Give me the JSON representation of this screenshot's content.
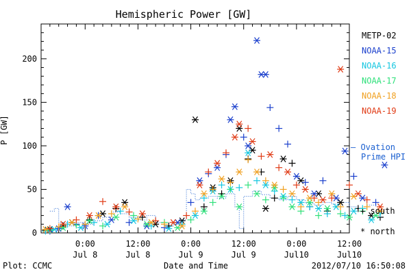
{
  "chart_data": {
    "type": "scatter",
    "title": "Hemispheric Power [GW]",
    "ylabel": "P [GW]",
    "xlabel": "Date and Time",
    "ylim": [
      0,
      240
    ],
    "xlim_hours": [
      -10,
      60
    ],
    "yticks": [
      0,
      50,
      100,
      150,
      200
    ],
    "xticks": [
      {
        "x": 0,
        "time": "0:00",
        "date": "Jul 8"
      },
      {
        "x": 12,
        "time": "12:00",
        "date": "Jul 8"
      },
      {
        "x": 24,
        "time": "0:00",
        "date": "Jul 9"
      },
      {
        "x": 36,
        "time": "12:00",
        "date": "Jul 9"
      },
      {
        "x": 48,
        "time": "0:00",
        "date": "Jul10"
      },
      {
        "x": 60,
        "time": "12:00",
        "date": "Jul10"
      }
    ],
    "footer_left": "Plot: CCMC",
    "footer_right": "2012/07/10 16:50:08",
    "ovation": {
      "label_line1": "— Ovation",
      "label_line2": "Prime HPI",
      "color": "#1a5fd0",
      "points": [
        [
          -8,
          25
        ],
        [
          -7,
          28
        ],
        [
          -6,
          12
        ],
        [
          -4,
          8
        ],
        [
          -2,
          12
        ],
        [
          0,
          10
        ],
        [
          2,
          14
        ],
        [
          4,
          18
        ],
        [
          6,
          24
        ],
        [
          8,
          22
        ],
        [
          10,
          18
        ],
        [
          12,
          15
        ],
        [
          14,
          20
        ],
        [
          16,
          12
        ],
        [
          18,
          8
        ],
        [
          20,
          10
        ],
        [
          22,
          15
        ],
        [
          23,
          50
        ],
        [
          24,
          45
        ],
        [
          25,
          38
        ],
        [
          26,
          40
        ],
        [
          28,
          42
        ],
        [
          30,
          40
        ],
        [
          32,
          45
        ],
        [
          34,
          30
        ],
        [
          35,
          5
        ],
        [
          36,
          42
        ],
        [
          38,
          48
        ],
        [
          40,
          44
        ],
        [
          42,
          40
        ],
        [
          44,
          38
        ],
        [
          46,
          42
        ],
        [
          48,
          38
        ],
        [
          50,
          34
        ],
        [
          52,
          32
        ],
        [
          54,
          35
        ],
        [
          56,
          33
        ],
        [
          58,
          35
        ],
        [
          60,
          30
        ],
        [
          62,
          28
        ],
        [
          64,
          32
        ],
        [
          66,
          30
        ]
      ]
    },
    "series": [
      {
        "name": "METP-02",
        "color": "#000000",
        "points": [
          [
            -9,
            3,
            "+"
          ],
          [
            -8,
            4,
            "*"
          ],
          [
            -5,
            8,
            "+"
          ],
          [
            -3,
            12,
            "*"
          ],
          [
            1,
            15,
            "+"
          ],
          [
            4,
            22,
            "*"
          ],
          [
            7,
            28,
            "+"
          ],
          [
            9,
            35,
            "*"
          ],
          [
            13,
            18,
            "+"
          ],
          [
            16,
            10,
            "*"
          ],
          [
            19,
            8,
            "+"
          ],
          [
            22,
            14,
            "*"
          ],
          [
            25,
            130,
            "*"
          ],
          [
            27,
            30,
            "+"
          ],
          [
            29,
            52,
            "*"
          ],
          [
            31,
            45,
            "+"
          ],
          [
            33,
            60,
            "*"
          ],
          [
            35,
            120,
            "*"
          ],
          [
            37,
            85,
            "+"
          ],
          [
            38,
            95,
            "*"
          ],
          [
            40,
            70,
            "+"
          ],
          [
            41,
            28,
            "*"
          ],
          [
            43,
            40,
            "+"
          ],
          [
            45,
            85,
            "*"
          ],
          [
            47,
            80,
            "+"
          ],
          [
            49,
            60,
            "*"
          ],
          [
            51,
            30,
            "+"
          ],
          [
            53,
            45,
            "*"
          ],
          [
            55,
            25,
            "+"
          ],
          [
            58,
            35,
            "*"
          ],
          [
            62,
            28,
            "+"
          ],
          [
            65,
            20,
            "*"
          ],
          [
            67,
            18,
            "+"
          ]
        ]
      },
      {
        "name": "NOAA-15",
        "color": "#1a3fcc",
        "points": [
          [
            -8,
            2,
            "+"
          ],
          [
            -6,
            5,
            "*"
          ],
          [
            -4,
            30,
            "*"
          ],
          [
            -2,
            10,
            "+"
          ],
          [
            0,
            8,
            "*"
          ],
          [
            3,
            20,
            "+"
          ],
          [
            6,
            15,
            "*"
          ],
          [
            10,
            12,
            "+"
          ],
          [
            14,
            8,
            "*"
          ],
          [
            18,
            6,
            "+"
          ],
          [
            21,
            12,
            "*"
          ],
          [
            24,
            35,
            "+"
          ],
          [
            26,
            60,
            "*"
          ],
          [
            28,
            68,
            "+"
          ],
          [
            30,
            75,
            "*"
          ],
          [
            32,
            90,
            "+"
          ],
          [
            33,
            130,
            "*"
          ],
          [
            34,
            145,
            "*"
          ],
          [
            36,
            110,
            "+"
          ],
          [
            37,
            100,
            "*"
          ],
          [
            39,
            221,
            "*"
          ],
          [
            40,
            182,
            "*"
          ],
          [
            41,
            182,
            "*"
          ],
          [
            42,
            144,
            "+"
          ],
          [
            44,
            120,
            "+"
          ],
          [
            46,
            102,
            "+"
          ],
          [
            48,
            65,
            "*"
          ],
          [
            50,
            58,
            "+"
          ],
          [
            52,
            45,
            "*"
          ],
          [
            54,
            60,
            "+"
          ],
          [
            57,
            40,
            "*"
          ],
          [
            59,
            94,
            "*"
          ],
          [
            61,
            65,
            "+"
          ],
          [
            63,
            40,
            "*"
          ],
          [
            66,
            35,
            "+"
          ],
          [
            68,
            78,
            "*"
          ]
        ]
      },
      {
        "name": "NOAA-16",
        "color": "#14c6e0",
        "points": [
          [
            -9,
            2,
            "+"
          ],
          [
            -7,
            4,
            "*"
          ],
          [
            -4,
            10,
            "+"
          ],
          [
            -1,
            6,
            "*"
          ],
          [
            2,
            12,
            "+"
          ],
          [
            5,
            10,
            "*"
          ],
          [
            8,
            25,
            "+"
          ],
          [
            11,
            14,
            "*"
          ],
          [
            15,
            8,
            "+"
          ],
          [
            19,
            5,
            "*"
          ],
          [
            22,
            10,
            "+"
          ],
          [
            25,
            20,
            "*"
          ],
          [
            27,
            40,
            "+"
          ],
          [
            29,
            48,
            "*"
          ],
          [
            31,
            55,
            "+"
          ],
          [
            33,
            50,
            "*"
          ],
          [
            35,
            52,
            "+"
          ],
          [
            37,
            92,
            "*"
          ],
          [
            39,
            60,
            "+"
          ],
          [
            41,
            55,
            "*"
          ],
          [
            43,
            48,
            "+"
          ],
          [
            45,
            42,
            "*"
          ],
          [
            47,
            38,
            "+"
          ],
          [
            49,
            35,
            "*"
          ],
          [
            51,
            30,
            "+"
          ],
          [
            53,
            28,
            "*"
          ],
          [
            55,
            22,
            "+"
          ],
          [
            57,
            30,
            "*"
          ],
          [
            59,
            20,
            "+"
          ],
          [
            61,
            25,
            "*"
          ],
          [
            63,
            28,
            "+"
          ],
          [
            65,
            15,
            "*"
          ],
          [
            67,
            22,
            "+"
          ]
        ]
      },
      {
        "name": "NOAA-17",
        "color": "#2ee07a",
        "points": [
          [
            -8,
            3,
            "+"
          ],
          [
            -5,
            6,
            "*"
          ],
          [
            -2,
            9,
            "+"
          ],
          [
            1,
            14,
            "*"
          ],
          [
            4,
            8,
            "+"
          ],
          [
            7,
            18,
            "*"
          ],
          [
            11,
            20,
            "+"
          ],
          [
            14,
            10,
            "*"
          ],
          [
            18,
            12,
            "+"
          ],
          [
            21,
            6,
            "*"
          ],
          [
            24,
            15,
            "+"
          ],
          [
            27,
            25,
            "*"
          ],
          [
            29,
            35,
            "+"
          ],
          [
            31,
            42,
            "*"
          ],
          [
            33,
            50,
            "+"
          ],
          [
            35,
            30,
            "*"
          ],
          [
            37,
            55,
            "+"
          ],
          [
            39,
            45,
            "*"
          ],
          [
            41,
            38,
            "+"
          ],
          [
            43,
            52,
            "*"
          ],
          [
            45,
            40,
            "+"
          ],
          [
            47,
            30,
            "*"
          ],
          [
            49,
            25,
            "+"
          ],
          [
            51,
            35,
            "*"
          ],
          [
            53,
            20,
            "+"
          ],
          [
            55,
            28,
            "*"
          ],
          [
            58,
            22,
            "+"
          ],
          [
            60,
            18,
            "*"
          ],
          [
            63,
            25,
            "+"
          ],
          [
            66,
            20,
            "*"
          ]
        ]
      },
      {
        "name": "NOAA-18",
        "color": "#f0a020",
        "points": [
          [
            -9,
            4,
            "*"
          ],
          [
            -6,
            7,
            "+"
          ],
          [
            -3,
            12,
            "*"
          ],
          [
            0,
            10,
            "+"
          ],
          [
            3,
            20,
            "*"
          ],
          [
            6,
            22,
            "+"
          ],
          [
            9,
            30,
            "*"
          ],
          [
            12,
            16,
            "+"
          ],
          [
            15,
            12,
            "*"
          ],
          [
            18,
            10,
            "+"
          ],
          [
            22,
            8,
            "*"
          ],
          [
            25,
            25,
            "+"
          ],
          [
            27,
            45,
            "*"
          ],
          [
            29,
            50,
            "+"
          ],
          [
            31,
            62,
            "*"
          ],
          [
            33,
            58,
            "+"
          ],
          [
            35,
            70,
            "*"
          ],
          [
            37,
            84,
            "+"
          ],
          [
            39,
            70,
            "*"
          ],
          [
            41,
            60,
            "+"
          ],
          [
            43,
            55,
            "*"
          ],
          [
            45,
            50,
            "+"
          ],
          [
            47,
            45,
            "*"
          ],
          [
            49,
            30,
            "+"
          ],
          [
            51,
            40,
            "*"
          ],
          [
            53,
            35,
            "+"
          ],
          [
            56,
            45,
            "*"
          ],
          [
            58,
            30,
            "+"
          ],
          [
            61,
            42,
            "*"
          ],
          [
            64,
            30,
            "+"
          ],
          [
            67,
            25,
            "*"
          ]
        ]
      },
      {
        "name": "NOAA-19",
        "color": "#e03a14",
        "points": [
          [
            -8,
            5,
            "+"
          ],
          [
            -5,
            10,
            "*"
          ],
          [
            -2,
            15,
            "+"
          ],
          [
            1,
            20,
            "*"
          ],
          [
            4,
            36,
            "+"
          ],
          [
            7,
            30,
            "*"
          ],
          [
            10,
            24,
            "+"
          ],
          [
            13,
            22,
            "*"
          ],
          [
            16,
            14,
            "+"
          ],
          [
            20,
            12,
            "*"
          ],
          [
            23,
            20,
            "+"
          ],
          [
            26,
            55,
            "*"
          ],
          [
            28,
            70,
            "+"
          ],
          [
            30,
            80,
            "*"
          ],
          [
            32,
            92,
            "+"
          ],
          [
            34,
            110,
            "*"
          ],
          [
            35,
            125,
            "*"
          ],
          [
            37,
            120,
            "+"
          ],
          [
            38,
            105,
            "*"
          ],
          [
            40,
            88,
            "+"
          ],
          [
            42,
            90,
            "*"
          ],
          [
            44,
            75,
            "+"
          ],
          [
            46,
            70,
            "*"
          ],
          [
            48,
            55,
            "+"
          ],
          [
            50,
            50,
            "*"
          ],
          [
            52,
            40,
            "+"
          ],
          [
            54,
            38,
            "*"
          ],
          [
            56,
            40,
            "+"
          ],
          [
            58,
            188,
            "*"
          ],
          [
            60,
            55,
            "+"
          ],
          [
            62,
            45,
            "*"
          ],
          [
            64,
            38,
            "+"
          ],
          [
            67,
            30,
            "*"
          ]
        ]
      }
    ],
    "marker_legend": [
      {
        "symbol": "+",
        "label": "south"
      },
      {
        "symbol": "*",
        "label": "north"
      }
    ],
    "grid": false,
    "legend_position": "right"
  }
}
